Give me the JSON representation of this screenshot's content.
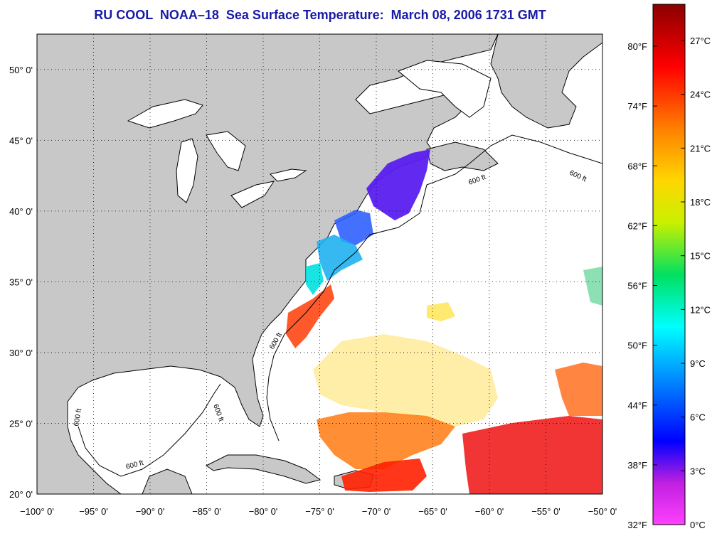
{
  "title": "RU COOL  NOAA–18  Sea Surface Temperature:  March 08, 2006 1731 GMT",
  "map": {
    "lon_range": [
      -100,
      -50
    ],
    "lat_range": [
      20,
      52.5
    ],
    "lon_ticks": [
      "−100° 0'",
      "−95° 0'",
      "−90° 0'",
      "−85° 0'",
      "−80° 0'",
      "−75° 0'",
      "−70° 0'",
      "−65° 0'",
      "−60° 0'",
      "−55° 0'",
      "−50° 0'"
    ],
    "lat_ticks": [
      "20° 0'",
      "25° 0'",
      "30° 0'",
      "35° 0'",
      "40° 0'",
      "45° 0'",
      "50° 0'"
    ],
    "contour_label": "600 ft",
    "land_color": "#c8c8c8",
    "ocean_color": "#ffffff",
    "grid": true
  },
  "colorbar": {
    "fahrenheit_labels": [
      "80°F",
      "74°F",
      "68°F",
      "62°F",
      "56°F",
      "50°F",
      "44°F",
      "38°F",
      "32°F"
    ],
    "celsius_labels": [
      "27°C",
      "24°C",
      "21°C",
      "18°C",
      "15°C",
      "12°C",
      "9°C",
      "6°C",
      "3°C",
      "0°C"
    ],
    "colors": [
      "#990000",
      "#ff0000",
      "#ff7f00",
      "#ffd700",
      "#c8f000",
      "#00e060",
      "#00ffff",
      "#0080ff",
      "#0000ff",
      "#8000c0",
      "#ff40ff"
    ]
  }
}
